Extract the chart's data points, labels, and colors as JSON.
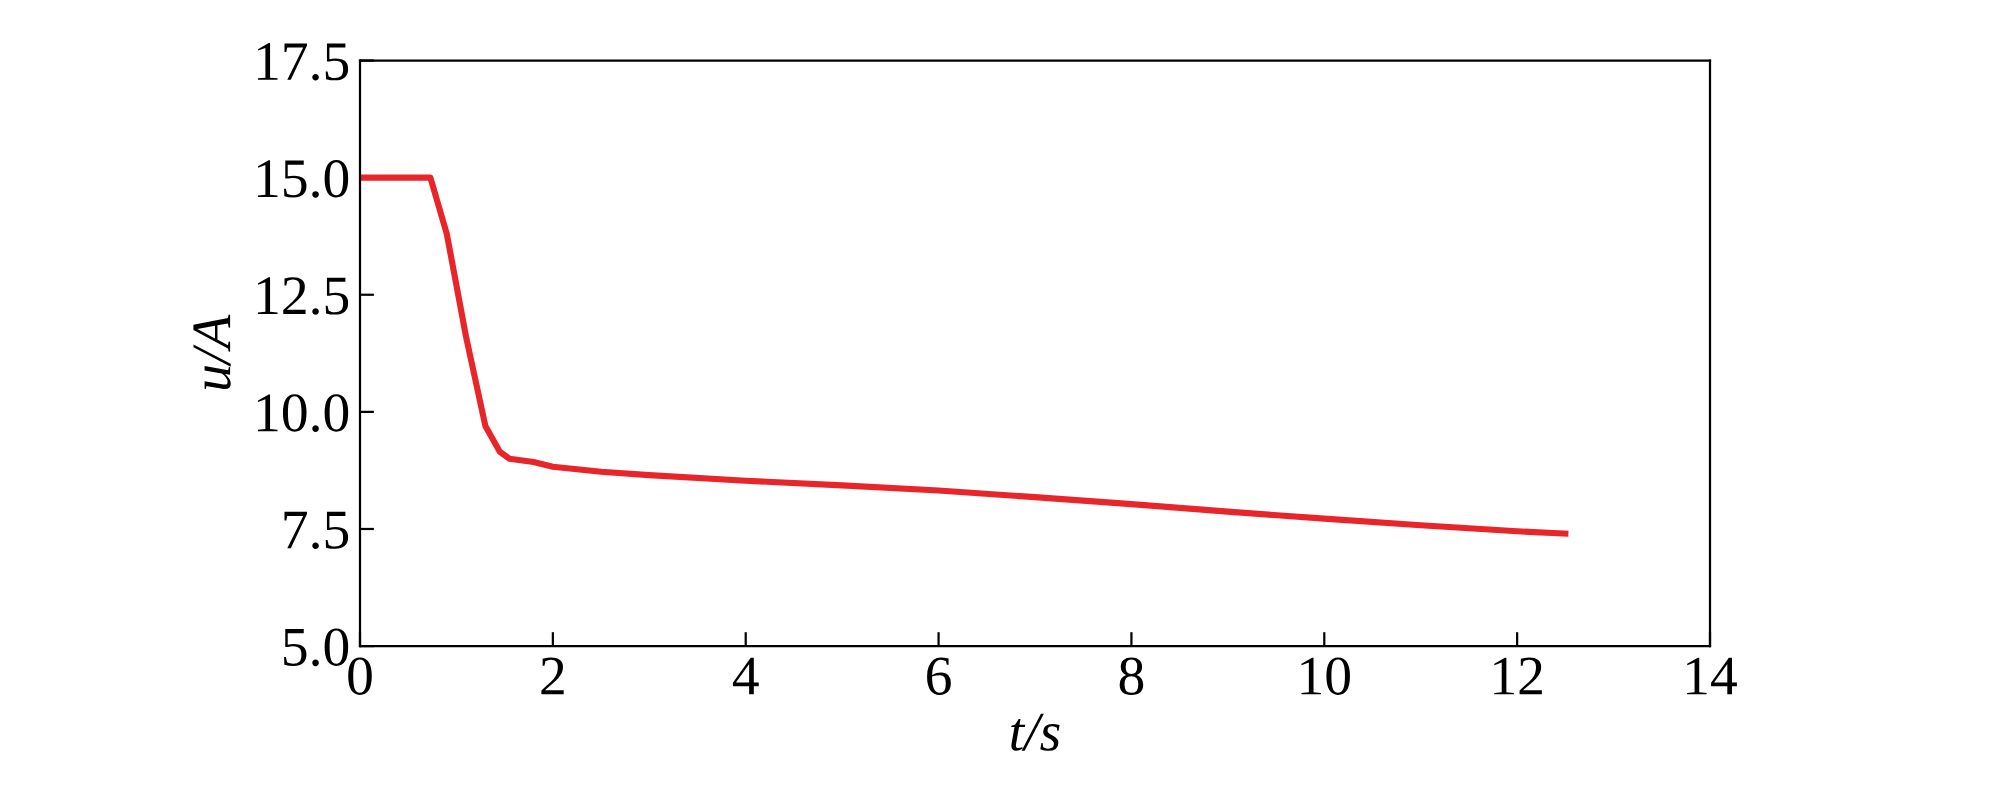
{
  "chart_data": {
    "type": "line",
    "xlabel": "t/s",
    "ylabel": "u/A",
    "x": [
      0,
      0.73,
      0.9,
      1.1,
      1.3,
      1.45,
      1.55,
      1.8,
      2,
      2.5,
      3,
      4,
      5,
      6,
      7,
      8,
      9,
      10,
      11,
      12,
      12.5
    ],
    "series": [
      {
        "color": "#e8262a",
        "values": [
          15.0,
          15.0,
          13.8,
          11.6,
          9.7,
          9.15,
          9.0,
          8.93,
          8.83,
          8.72,
          8.65,
          8.53,
          8.43,
          8.32,
          8.18,
          8.03,
          7.87,
          7.72,
          7.58,
          7.45,
          7.4
        ]
      }
    ],
    "xlim": [
      0,
      14
    ],
    "xticks": [
      0,
      2,
      4,
      6,
      8,
      10,
      12,
      14
    ],
    "ylim": [
      5,
      17.5
    ],
    "yticks": [
      {
        "value": 5,
        "label": "5.0"
      },
      {
        "value": 7.5,
        "label": "7.5"
      },
      {
        "value": 10,
        "label": "10.0"
      },
      {
        "value": 12.5,
        "label": "12.5"
      },
      {
        "value": 15,
        "label": "15.0"
      },
      {
        "value": 17.5,
        "label": "17.5"
      }
    ],
    "grid": false,
    "legend": false,
    "marker": "none",
    "line_style": "solid"
  }
}
